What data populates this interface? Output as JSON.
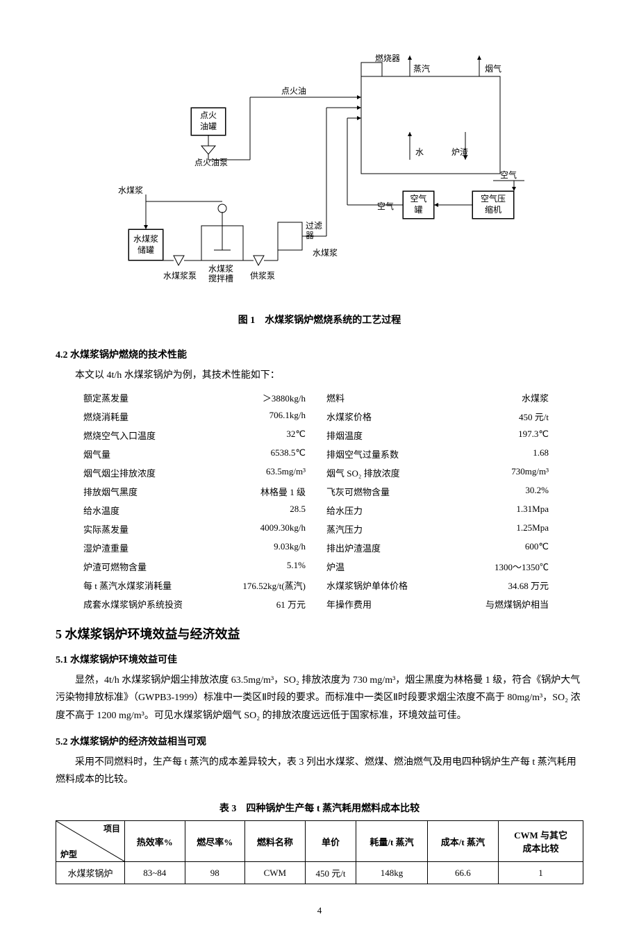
{
  "diagram": {
    "labels": {
      "burner": "燃烧器",
      "steam": "蒸汽",
      "flue_gas": "烟气",
      "ignition_oil_line": "点火油",
      "ignition_oil_tank": "点火\n油罐",
      "ignition_oil_pump": "点火油泵",
      "water": "水",
      "slag": "炉渣",
      "air": "空气",
      "air_top": "空气",
      "air_tank": "空气\n罐",
      "air_compressor": "空气压\n缩机",
      "cwm": "水煤浆",
      "cwm_tank": "水煤浆\n储罐",
      "cwm_pump": "水煤浆泵",
      "mix_tank": "水煤浆\n搅拌槽",
      "supply_pump": "供浆泵",
      "filter": "过滤\n器",
      "cwm_out": "水煤浆"
    },
    "caption": "图 1　水煤浆锅炉燃烧系统的工艺过程"
  },
  "sec42": {
    "title": "4.2 水煤浆锅炉燃烧的技术性能",
    "intro": "本文以 4t/h 水煤浆锅炉为例，其技术性能如下：",
    "rows": [
      [
        "额定蒸发量",
        "＞3880kg/h",
        "燃料",
        "水煤浆"
      ],
      [
        "燃烧消耗量",
        "706.1kg/h",
        "水煤浆价格",
        "450 元/t"
      ],
      [
        "燃烧空气入口温度",
        "32℃",
        "排烟温度",
        "197.3℃"
      ],
      [
        "烟气量",
        "6538.5℃",
        "排烟空气过量系数",
        "1.68"
      ],
      [
        "烟气烟尘排放浓度",
        "63.5mg/m³",
        "烟气 SO₂ 排放浓度",
        "730mg/m³"
      ],
      [
        "排放烟气黑度",
        "林格曼 1 级",
        "飞灰可燃物含量",
        "30.2%"
      ],
      [
        "给水温度",
        "28.5",
        "给水压力",
        "1.31Mpa"
      ],
      [
        "实际蒸发量",
        "4009.30kg/h",
        "蒸汽压力",
        "1.25Mpa"
      ],
      [
        "湿炉渣重量",
        "9.03kg/h",
        "排出炉渣温度",
        "600℃"
      ],
      [
        "炉渣可燃物含量",
        "5.1%",
        "炉温",
        "1300～1350℃"
      ],
      [
        "每 t 蒸汽水煤浆消耗量",
        "176.52kg/t(蒸汽)",
        "水煤浆锅炉单体价格",
        "34.68 万元"
      ],
      [
        "成套水煤浆锅炉系统投资",
        "61 万元",
        "年操作费用",
        "与燃煤锅炉相当"
      ]
    ]
  },
  "sec5": {
    "title": "5 水煤浆锅炉环境效益与经济效益",
    "sub51_title": "5.1 水煤浆锅炉环境效益可佳",
    "sub51_body": "显然，4t/h 水煤浆锅炉烟尘排放浓度 63.5mg/m³，SO₂ 排放浓度为 730 mg/m³，烟尘黑度为林格曼 1 级，符合《锅炉大气污染物排放标准》（GWPB3-1999）标准中一类区Ⅱ时段的要求。而标准中一类区Ⅱ时段要求烟尘浓度不高于 80mg/m³，SO₂ 浓度不高于 1200 mg/m³。可见水煤浆锅炉烟气 SO₂ 的排放浓度远远低于国家标准，环境效益可佳。",
    "sub52_title": "5.2 水煤浆锅炉的经济效益相当可观",
    "sub52_body": "采用不同燃料时，生产每 t 蒸汽的成本差异较大，表 3 列出水煤浆、燃煤、燃油燃气及用电四种锅炉生产每 t 蒸汽耗用燃料成本的比较。"
  },
  "table3": {
    "caption": "表 3　四种锅炉生产每 t 蒸汽耗用燃料成本比较",
    "diag_top": "项目",
    "diag_bot": "炉型",
    "columns": [
      "热效率%",
      "燃尽率%",
      "燃料名称",
      "单价",
      "耗量/t 蒸汽",
      "成本/t 蒸汽",
      "CWM 与其它\n成本比较"
    ],
    "row": [
      "水煤浆锅炉",
      "83~84",
      "98",
      "CWM",
      "450 元/t",
      "148kg",
      "66.6",
      "1"
    ]
  },
  "pagenum": "4"
}
